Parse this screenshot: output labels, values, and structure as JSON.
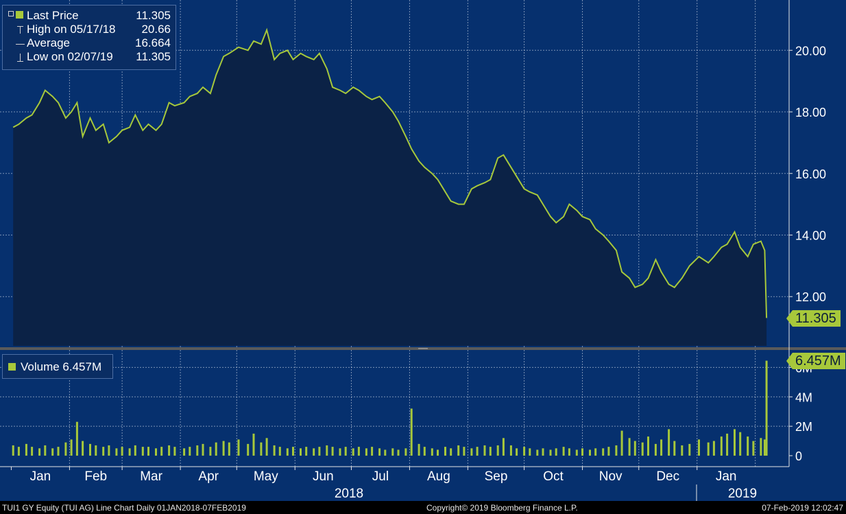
{
  "colors": {
    "panel_bg": "#06306e",
    "area_fill": "#0b2246",
    "line": "#a7c83b",
    "volume_bar": "#a7c83b",
    "grid": "#c9d3e3",
    "text": "#ffffff",
    "separator": "#5a5a5a",
    "legend_bg": "#0a2d63"
  },
  "legend": {
    "last_price_label": "Last Price",
    "last_price_value": "11.305",
    "high_label": "High on 05/17/18",
    "high_value": "20.66",
    "average_label": "Average",
    "average_value": "16.664",
    "low_label": "Low on 02/07/19",
    "low_value": "11.305",
    "volume_label": "Volume 6.457M"
  },
  "badges": {
    "last_price": "11.305",
    "volume": "6.457M"
  },
  "footer": {
    "left": "TUI1 GY Equity (TUI AG) Line Chart  Daily 01JAN2018-07FEB2019",
    "center": "Copyright© 2019 Bloomberg Finance L.P.",
    "right": "07-Feb-2019 12:02:47"
  },
  "chart_data": [
    {
      "type": "area",
      "series": [
        {
          "name": "Last Price",
          "x": [
            "2018-01-02",
            "2018-01-05",
            "2018-01-09",
            "2018-01-12",
            "2018-01-16",
            "2018-01-19",
            "2018-01-23",
            "2018-01-26",
            "2018-01-30",
            "2018-02-02",
            "2018-02-05",
            "2018-02-08",
            "2018-02-12",
            "2018-02-15",
            "2018-02-19",
            "2018-02-22",
            "2018-02-26",
            "2018-03-01",
            "2018-03-05",
            "2018-03-08",
            "2018-03-12",
            "2018-03-15",
            "2018-03-19",
            "2018-03-22",
            "2018-03-26",
            "2018-03-29",
            "2018-04-03",
            "2018-04-06",
            "2018-04-10",
            "2018-04-13",
            "2018-04-17",
            "2018-04-20",
            "2018-04-24",
            "2018-04-27",
            "2018-05-02",
            "2018-05-07",
            "2018-05-10",
            "2018-05-14",
            "2018-05-17",
            "2018-05-21",
            "2018-05-24",
            "2018-05-28",
            "2018-05-31",
            "2018-06-04",
            "2018-06-07",
            "2018-06-11",
            "2018-06-14",
            "2018-06-18",
            "2018-06-21",
            "2018-06-25",
            "2018-06-28",
            "2018-07-02",
            "2018-07-05",
            "2018-07-09",
            "2018-07-12",
            "2018-07-16",
            "2018-07-19",
            "2018-07-23",
            "2018-07-26",
            "2018-07-30",
            "2018-08-02",
            "2018-08-06",
            "2018-08-09",
            "2018-08-13",
            "2018-08-16",
            "2018-08-20",
            "2018-08-23",
            "2018-08-27",
            "2018-08-30",
            "2018-09-03",
            "2018-09-06",
            "2018-09-10",
            "2018-09-13",
            "2018-09-17",
            "2018-09-20",
            "2018-09-24",
            "2018-09-27",
            "2018-10-01",
            "2018-10-04",
            "2018-10-08",
            "2018-10-11",
            "2018-10-15",
            "2018-10-18",
            "2018-10-22",
            "2018-10-25",
            "2018-10-29",
            "2018-11-01",
            "2018-11-05",
            "2018-11-08",
            "2018-11-12",
            "2018-11-15",
            "2018-11-19",
            "2018-11-22",
            "2018-11-26",
            "2018-11-29",
            "2018-12-03",
            "2018-12-06",
            "2018-12-10",
            "2018-12-13",
            "2018-12-17",
            "2018-12-20",
            "2018-12-24",
            "2018-12-28",
            "2019-01-02",
            "2019-01-07",
            "2019-01-10",
            "2019-01-14",
            "2019-01-17",
            "2019-01-21",
            "2019-01-24",
            "2019-01-28",
            "2019-01-31",
            "2019-02-04",
            "2019-02-06",
            "2019-02-07"
          ],
          "y": [
            17.5,
            17.6,
            17.8,
            17.9,
            18.3,
            18.7,
            18.5,
            18.3,
            17.8,
            18.0,
            18.3,
            17.2,
            17.8,
            17.4,
            17.6,
            17.0,
            17.2,
            17.4,
            17.5,
            17.9,
            17.4,
            17.6,
            17.4,
            17.6,
            18.3,
            18.2,
            18.3,
            18.5,
            18.6,
            18.8,
            18.6,
            19.2,
            19.8,
            19.9,
            20.1,
            20.0,
            20.3,
            20.2,
            20.66,
            19.7,
            19.9,
            20.0,
            19.7,
            19.9,
            19.8,
            19.7,
            19.9,
            19.4,
            18.8,
            18.7,
            18.6,
            18.8,
            18.7,
            18.5,
            18.4,
            18.5,
            18.3,
            18.0,
            17.7,
            17.2,
            16.8,
            16.4,
            16.2,
            16.0,
            15.8,
            15.4,
            15.1,
            15.0,
            15.0,
            15.5,
            15.6,
            15.7,
            15.8,
            16.5,
            16.6,
            16.2,
            15.9,
            15.5,
            15.4,
            15.3,
            15.0,
            14.6,
            14.4,
            14.6,
            15.0,
            14.8,
            14.6,
            14.5,
            14.2,
            14.0,
            13.8,
            13.5,
            12.8,
            12.6,
            12.3,
            12.4,
            12.6,
            13.2,
            12.8,
            12.4,
            12.3,
            12.6,
            13.0,
            13.3,
            13.1,
            13.3,
            13.6,
            13.7,
            14.1,
            13.6,
            13.3,
            13.7,
            13.8,
            13.5,
            11.305
          ]
        }
      ],
      "ylim": [
        10.4,
        21.5
      ],
      "yticks": [
        "12.00",
        "14.00",
        "16.00",
        "18.00",
        "20.00"
      ],
      "ytick_values": [
        12,
        14,
        16,
        18,
        20
      ],
      "xtick_labels": [
        "Jan",
        "Feb",
        "Mar",
        "Apr",
        "May",
        "Jun",
        "Jul",
        "Aug",
        "Sep",
        "Oct",
        "Nov",
        "Dec",
        "Jan"
      ],
      "year_labels": [
        "2018",
        "2019"
      ],
      "high": 20.66,
      "average": 16.664,
      "low": 11.305,
      "last": 11.305,
      "grid": true,
      "legend_position": "top-left"
    },
    {
      "type": "bar",
      "series": [
        {
          "name": "Volume",
          "unit": "M",
          "x": [
            "2018-01-02",
            "2018-01-05",
            "2018-01-09",
            "2018-01-12",
            "2018-01-16",
            "2018-01-19",
            "2018-01-23",
            "2018-01-26",
            "2018-01-30",
            "2018-02-02",
            "2018-02-05",
            "2018-02-08",
            "2018-02-12",
            "2018-02-15",
            "2018-02-19",
            "2018-02-22",
            "2018-02-26",
            "2018-03-01",
            "2018-03-05",
            "2018-03-08",
            "2018-03-12",
            "2018-03-15",
            "2018-03-19",
            "2018-03-22",
            "2018-03-26",
            "2018-03-29",
            "2018-04-03",
            "2018-04-06",
            "2018-04-10",
            "2018-04-13",
            "2018-04-17",
            "2018-04-20",
            "2018-04-24",
            "2018-04-27",
            "2018-05-02",
            "2018-05-07",
            "2018-05-10",
            "2018-05-14",
            "2018-05-17",
            "2018-05-21",
            "2018-05-24",
            "2018-05-28",
            "2018-05-31",
            "2018-06-04",
            "2018-06-07",
            "2018-06-11",
            "2018-06-14",
            "2018-06-18",
            "2018-06-21",
            "2018-06-25",
            "2018-06-28",
            "2018-07-02",
            "2018-07-05",
            "2018-07-09",
            "2018-07-12",
            "2018-07-16",
            "2018-07-19",
            "2018-07-23",
            "2018-07-26",
            "2018-07-30",
            "2018-08-02",
            "2018-08-06",
            "2018-08-09",
            "2018-08-13",
            "2018-08-16",
            "2018-08-20",
            "2018-08-23",
            "2018-08-27",
            "2018-08-30",
            "2018-09-03",
            "2018-09-06",
            "2018-09-10",
            "2018-09-13",
            "2018-09-17",
            "2018-09-20",
            "2018-09-24",
            "2018-09-27",
            "2018-10-01",
            "2018-10-04",
            "2018-10-08",
            "2018-10-11",
            "2018-10-15",
            "2018-10-18",
            "2018-10-22",
            "2018-10-25",
            "2018-10-29",
            "2018-11-01",
            "2018-11-05",
            "2018-11-08",
            "2018-11-12",
            "2018-11-15",
            "2018-11-19",
            "2018-11-22",
            "2018-11-26",
            "2018-11-29",
            "2018-12-03",
            "2018-12-06",
            "2018-12-10",
            "2018-12-13",
            "2018-12-17",
            "2018-12-20",
            "2018-12-24",
            "2018-12-28",
            "2019-01-02",
            "2019-01-07",
            "2019-01-10",
            "2019-01-14",
            "2019-01-17",
            "2019-01-21",
            "2019-01-24",
            "2019-01-28",
            "2019-01-31",
            "2019-02-04",
            "2019-02-06",
            "2019-02-07"
          ],
          "y": [
            0.7,
            0.6,
            0.8,
            0.6,
            0.5,
            0.7,
            0.5,
            0.6,
            0.9,
            1.1,
            2.3,
            1.0,
            0.8,
            0.7,
            0.6,
            0.7,
            0.5,
            0.6,
            0.5,
            0.7,
            0.6,
            0.6,
            0.5,
            0.6,
            0.7,
            0.6,
            0.5,
            0.6,
            0.7,
            0.8,
            0.6,
            0.9,
            1.0,
            0.9,
            1.1,
            0.8,
            1.5,
            0.9,
            1.2,
            0.7,
            0.6,
            0.5,
            0.6,
            0.5,
            0.6,
            0.5,
            0.6,
            0.7,
            0.6,
            0.5,
            0.6,
            0.5,
            0.6,
            0.5,
            0.6,
            0.5,
            0.4,
            0.5,
            0.4,
            0.5,
            3.2,
            0.8,
            0.6,
            0.5,
            0.4,
            0.6,
            0.5,
            0.7,
            0.6,
            0.5,
            0.6,
            0.7,
            0.6,
            0.7,
            1.2,
            0.7,
            0.5,
            0.6,
            0.5,
            0.4,
            0.5,
            0.4,
            0.5,
            0.6,
            0.5,
            0.4,
            0.5,
            0.4,
            0.5,
            0.5,
            0.6,
            0.7,
            1.7,
            1.2,
            1.0,
            0.9,
            1.3,
            0.8,
            1.1,
            1.8,
            1.0,
            0.7,
            0.8,
            1.1,
            0.9,
            1.0,
            1.3,
            1.5,
            1.8,
            1.6,
            1.3,
            1.0,
            1.2,
            1.1,
            6.457
          ]
        }
      ],
      "ylim": [
        0,
        7.0
      ],
      "yticks": [
        "0",
        "2M",
        "4M",
        "6M"
      ],
      "ytick_values": [
        0,
        2,
        4,
        6
      ],
      "grid": true,
      "legend_position": "top-left"
    }
  ]
}
